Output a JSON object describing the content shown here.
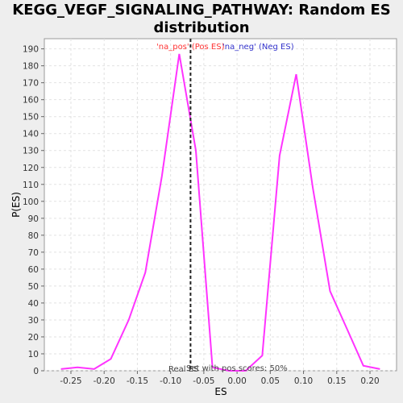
{
  "chart_data": {
    "type": "line",
    "title_line1": "KEGG_VEGF_SIGNALING_PATHWAY: Random ES",
    "title_line2": "distribution",
    "xlabel": "ES",
    "ylabel": "P(ES)",
    "xlim": [
      -0.29,
      0.24
    ],
    "ylim": [
      0,
      196
    ],
    "xticks": [
      "-0.25",
      "-0.20",
      "-0.15",
      "-0.10",
      "-0.05",
      "0.00",
      "0.05",
      "0.10",
      "0.15",
      "0.20"
    ],
    "yticks": [
      0,
      10,
      20,
      30,
      40,
      50,
      60,
      70,
      80,
      90,
      100,
      110,
      120,
      130,
      140,
      150,
      160,
      170,
      180,
      190
    ],
    "grid": true,
    "series": [
      {
        "color": "#ff33ff",
        "x": [
          -0.265,
          -0.24,
          -0.215,
          -0.19,
          -0.163,
          -0.138,
          -0.113,
          -0.087,
          -0.062,
          -0.037,
          -0.012,
          0.013,
          0.038,
          0.064,
          0.089,
          0.114,
          0.14,
          0.165,
          0.19,
          0.215
        ],
        "y": [
          1,
          2,
          1,
          7,
          30,
          58,
          115,
          187,
          130,
          2,
          0,
          0,
          9,
          127,
          175,
          108,
          47,
          25,
          3,
          1
        ]
      }
    ],
    "vline_x": -0.07,
    "legend": {
      "pos_label": "'na_pos' (Pos ES)",
      "neg_label": "'na_neg' (Neg ES)",
      "pos_color": "#ff3333",
      "neg_color": "#3333cc"
    },
    "annotation_real": "Real ES",
    "annotation_set": "Set with pos scores: 50%"
  }
}
